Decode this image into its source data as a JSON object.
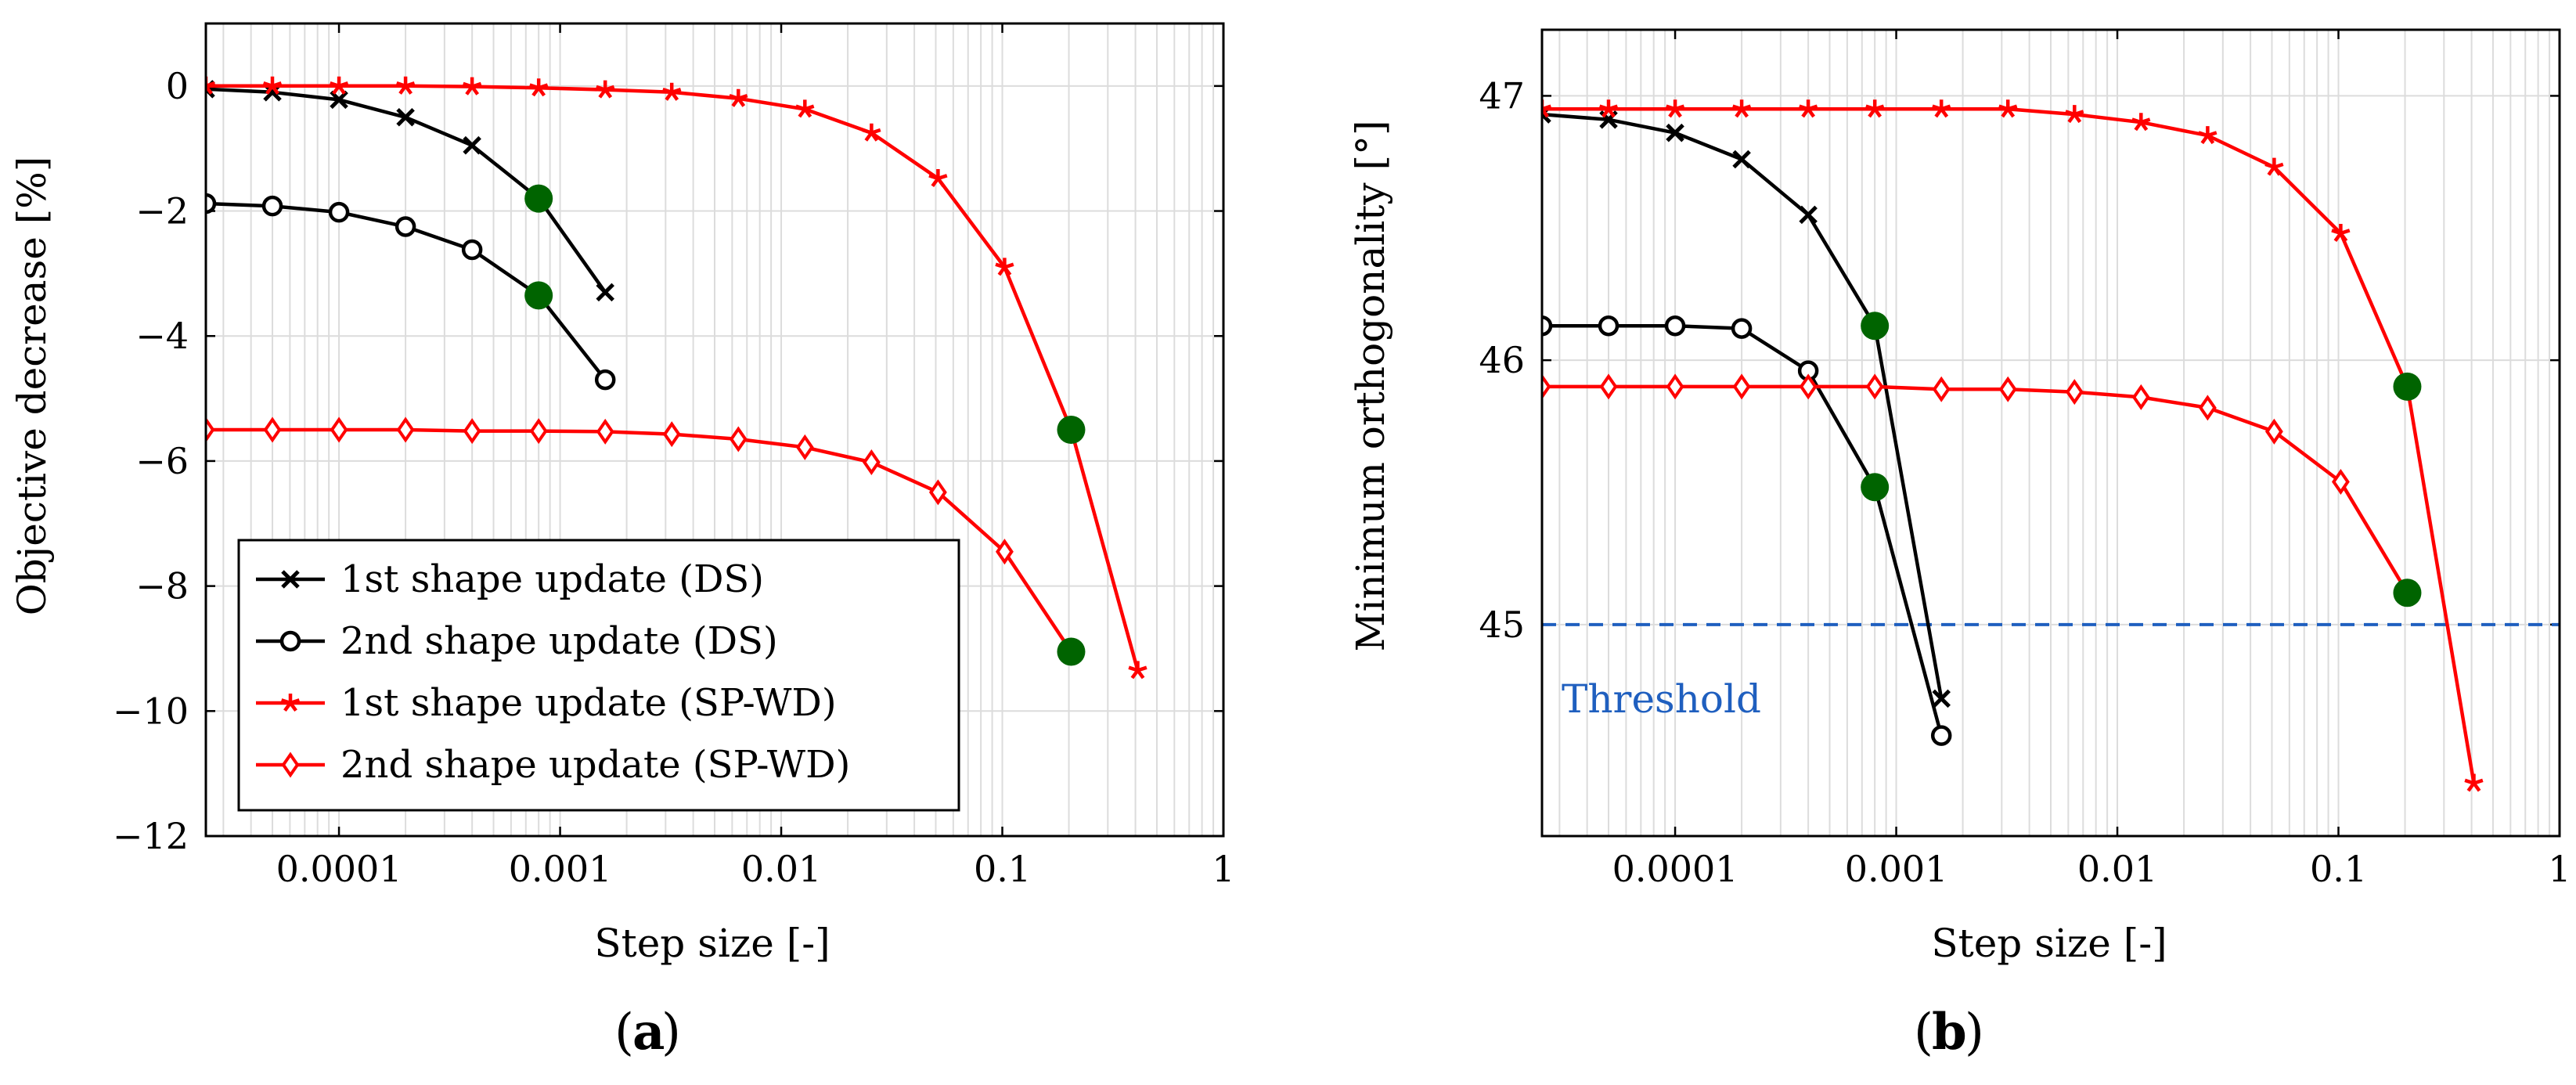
{
  "chart_data": [
    {
      "type": "line",
      "panel_label": "a",
      "xlabel": "Step size [-]",
      "ylabel": "Objective decrease [%]",
      "xscale": "log",
      "xlim": [
        2.5e-05,
        1
      ],
      "ylim": [
        -12,
        1
      ],
      "xticks": [
        {
          "v": 0.0001,
          "label": "0.0001"
        },
        {
          "v": 0.001,
          "label": "0.001"
        },
        {
          "v": 0.01,
          "label": "0.01"
        },
        {
          "v": 0.1,
          "label": "0.1"
        },
        {
          "v": 1,
          "label": "1"
        }
      ],
      "yticks": [
        {
          "v": 0,
          "label": "0"
        },
        {
          "v": -2,
          "label": "−2"
        },
        {
          "v": -4,
          "label": "−4"
        },
        {
          "v": -6,
          "label": "−6"
        },
        {
          "v": -8,
          "label": "−8"
        },
        {
          "v": -10,
          "label": "−10"
        },
        {
          "v": -12,
          "label": "−12"
        }
      ],
      "grid": true,
      "legend_position": "bottom-left",
      "series": [
        {
          "name": "1st shape update (DS)",
          "color": "#000000",
          "marker": "x",
          "x": [
            2.5e-05,
            5e-05,
            0.0001,
            0.0002,
            0.0004,
            0.0008,
            0.0016
          ],
          "y": [
            -0.05,
            -0.1,
            -0.22,
            -0.5,
            -0.95,
            -1.8,
            -3.3
          ]
        },
        {
          "name": "2nd shape update (DS)",
          "color": "#000000",
          "marker": "o",
          "x": [
            2.5e-05,
            5e-05,
            0.0001,
            0.0002,
            0.0004,
            0.0008,
            0.0016
          ],
          "y": [
            -1.88,
            -1.92,
            -2.02,
            -2.25,
            -2.62,
            -3.35,
            -4.7
          ]
        },
        {
          "name": "1st shape update (SP-WD)",
          "color": "#ff0000",
          "marker": "star",
          "x": [
            2.5e-05,
            5e-05,
            0.0001,
            0.0002,
            0.0004,
            0.0008,
            0.0016,
            0.0032,
            0.0064,
            0.0128,
            0.0256,
            0.0512,
            0.1024,
            0.2048,
            0.4096
          ],
          "y": [
            0,
            0,
            0,
            0,
            -0.01,
            -0.03,
            -0.06,
            -0.1,
            -0.2,
            -0.37,
            -0.75,
            -1.48,
            -2.9,
            -5.5,
            -9.35
          ]
        },
        {
          "name": "2nd shape update (SP-WD)",
          "color": "#ff0000",
          "marker": "diamond",
          "x": [
            2.5e-05,
            5e-05,
            0.0001,
            0.0002,
            0.0004,
            0.0008,
            0.0016,
            0.0032,
            0.0064,
            0.0128,
            0.0256,
            0.0512,
            0.1024,
            0.2048
          ],
          "y": [
            -5.5,
            -5.5,
            -5.5,
            -5.5,
            -5.52,
            -5.52,
            -5.53,
            -5.57,
            -5.65,
            -5.78,
            -6.02,
            -6.5,
            -7.45,
            -9.05
          ]
        }
      ],
      "highlights": {
        "color": "#006400",
        "points": [
          [
            0.0008,
            -1.8
          ],
          [
            0.0008,
            -3.35
          ],
          [
            0.2048,
            -5.5
          ],
          [
            0.2048,
            -9.05
          ]
        ]
      }
    },
    {
      "type": "line",
      "panel_label": "b",
      "xlabel": "Step size [-]",
      "ylabel": "Minimum orthogonality [°]",
      "xscale": "log",
      "xlim": [
        2.5e-05,
        1
      ],
      "ylim": [
        44.2,
        47.25
      ],
      "xticks": [
        {
          "v": 0.0001,
          "label": "0.0001"
        },
        {
          "v": 0.001,
          "label": "0.001"
        },
        {
          "v": 0.01,
          "label": "0.01"
        },
        {
          "v": 0.1,
          "label": "0.1"
        },
        {
          "v": 1,
          "label": "1"
        }
      ],
      "yticks": [
        {
          "v": 45,
          "label": "45"
        },
        {
          "v": 46,
          "label": "46"
        },
        {
          "v": 47,
          "label": "47"
        }
      ],
      "grid": true,
      "series": [
        {
          "name": "1st shape update (DS)",
          "color": "#000000",
          "marker": "x",
          "x": [
            2.5e-05,
            5e-05,
            0.0001,
            0.0002,
            0.0004,
            0.0008,
            0.0016
          ],
          "y": [
            46.93,
            46.91,
            46.86,
            46.76,
            46.55,
            46.13,
            44.72
          ]
        },
        {
          "name": "2nd shape update (DS)",
          "color": "#000000",
          "marker": "o",
          "x": [
            2.5e-05,
            5e-05,
            0.0001,
            0.0002,
            0.0004,
            0.0008,
            0.0016
          ],
          "y": [
            46.13,
            46.13,
            46.13,
            46.12,
            45.96,
            45.52,
            44.58
          ]
        },
        {
          "name": "1st shape update (SP-WD)",
          "color": "#ff0000",
          "marker": "star",
          "x": [
            2.5e-05,
            5e-05,
            0.0001,
            0.0002,
            0.0004,
            0.0008,
            0.0016,
            0.0032,
            0.0064,
            0.0128,
            0.0256,
            0.0512,
            0.1024,
            0.2048,
            0.4096
          ],
          "y": [
            46.95,
            46.95,
            46.95,
            46.95,
            46.95,
            46.95,
            46.95,
            46.95,
            46.93,
            46.9,
            46.85,
            46.73,
            46.48,
            45.9,
            44.4
          ]
        },
        {
          "name": "2nd shape update (SP-WD)",
          "color": "#ff0000",
          "marker": "diamond",
          "x": [
            2.5e-05,
            5e-05,
            0.0001,
            0.0002,
            0.0004,
            0.0008,
            0.0016,
            0.0032,
            0.0064,
            0.0128,
            0.0256,
            0.0512,
            0.1024,
            0.2048
          ],
          "y": [
            45.9,
            45.9,
            45.9,
            45.9,
            45.9,
            45.9,
            45.89,
            45.89,
            45.88,
            45.86,
            45.82,
            45.73,
            45.54,
            45.12
          ]
        }
      ],
      "highlights": {
        "color": "#006400",
        "points": [
          [
            0.0008,
            46.13
          ],
          [
            0.0008,
            45.52
          ],
          [
            0.2048,
            45.9
          ],
          [
            0.2048,
            45.12
          ]
        ]
      },
      "threshold": {
        "value": 45,
        "label": "Threshold",
        "color": "#1f5fbf"
      }
    }
  ]
}
